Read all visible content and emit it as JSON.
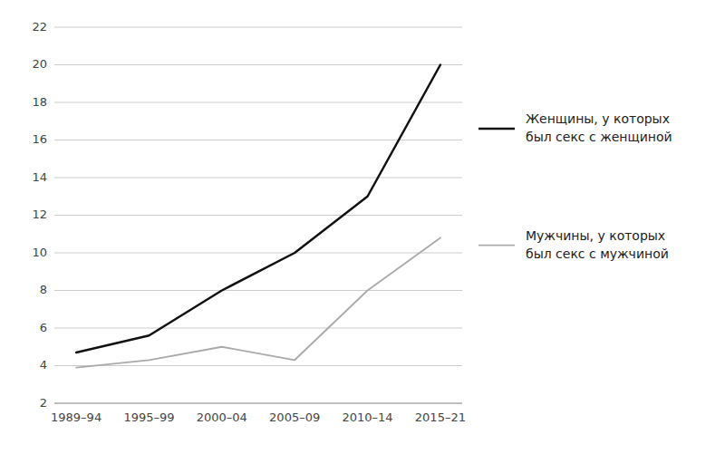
{
  "chart_data": {
    "type": "line",
    "categories": [
      "1989–94",
      "1995–99",
      "2000–04",
      "2005–09",
      "2010–14",
      "2015–21"
    ],
    "series": [
      {
        "name": "Женщины, у которых\nбыл секс с женщиной",
        "color": "#111111",
        "values": [
          4.7,
          5.6,
          8.0,
          10.0,
          13.0,
          20.0
        ]
      },
      {
        "name": "Мужчины, у которых\nбыл секс с мужчиной",
        "color": "#aaaaaa",
        "values": [
          3.9,
          4.3,
          5.0,
          4.3,
          8.0,
          10.8
        ]
      }
    ],
    "ylim": [
      2,
      22
    ],
    "yticks": [
      2,
      4,
      6,
      8,
      10,
      12,
      14,
      16,
      18,
      20,
      22
    ],
    "grid": true,
    "legend": "right"
  }
}
